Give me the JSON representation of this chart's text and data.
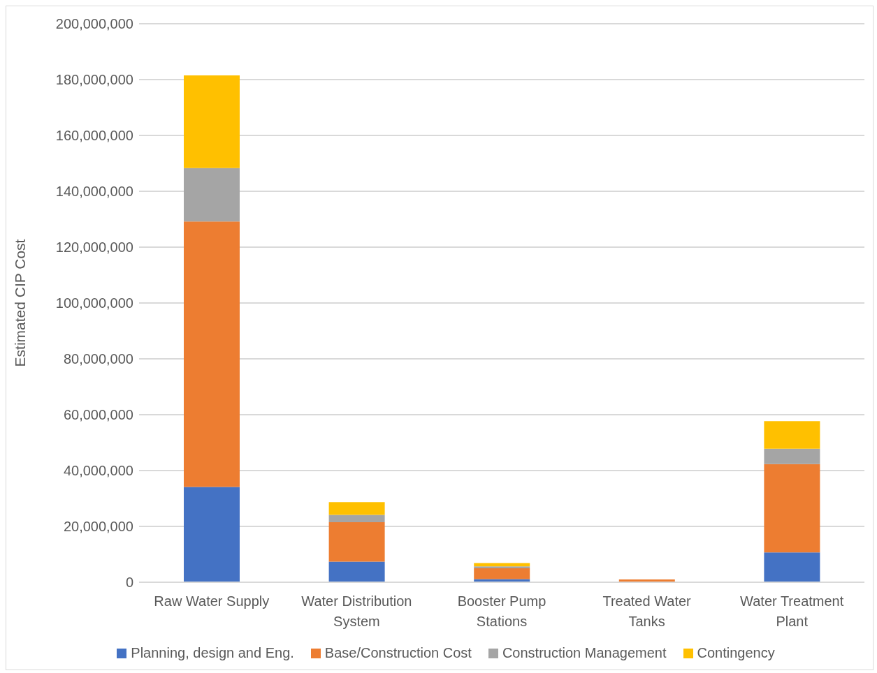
{
  "chart_data": {
    "type": "bar",
    "stacked": true,
    "ylabel": "Estimated CIP Cost",
    "categories": [
      "Raw Water Supply",
      "Water Distribution System",
      "Booster Pump Stations",
      "Treated Water Tanks",
      "Water Treatment Plant"
    ],
    "series": [
      {
        "name": "Planning, design and Eng.",
        "color": "#4472c4",
        "values": [
          34100000,
          7400000,
          1100000,
          null,
          10700000
        ]
      },
      {
        "name": "Base/Construction Cost",
        "color": "#ed7d31",
        "values": [
          95100000,
          14100000,
          3900000,
          1000000,
          31600000
        ]
      },
      {
        "name": "Construction Management",
        "color": "#a5a5a5",
        "values": [
          19100000,
          2600000,
          700000,
          null,
          5500000
        ]
      },
      {
        "name": "Contingency",
        "color": "#ffc000",
        "values": [
          33200000,
          4600000,
          1200000,
          null,
          9900000
        ]
      }
    ],
    "ylim": [
      0,
      200000000
    ],
    "yticks": [
      0,
      {
        "value": 20000000,
        "label": "20,000,000"
      },
      {
        "value": 40000000,
        "label": "40,000,000"
      },
      {
        "value": 60000000,
        "label": "60,000,000"
      },
      {
        "value": 80000000,
        "label": "80,000,000"
      },
      {
        "value": 100000000,
        "label": "100,000,000"
      },
      {
        "value": 120000000,
        "label": "120,000,000"
      },
      {
        "value": 140000000,
        "label": "140,000,000"
      },
      {
        "value": 160000000,
        "label": "160,000,000"
      },
      {
        "value": 180000000,
        "label": "180,000,000"
      },
      {
        "value": 200000000,
        "label": "200,000,000"
      }
    ],
    "grid": "y",
    "legend": "bottom"
  }
}
